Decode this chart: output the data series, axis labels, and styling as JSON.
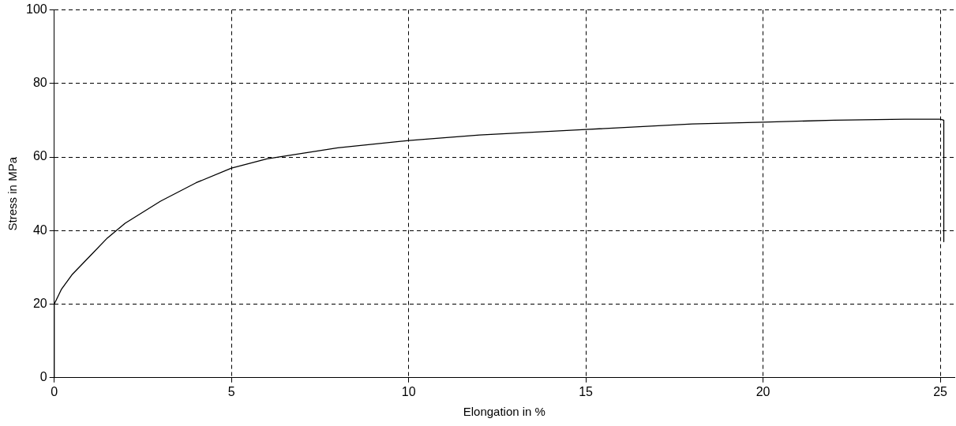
{
  "chart_data": {
    "type": "line",
    "xlabel": "Elongation in %",
    "ylabel": "Stress in MPa",
    "xlim": [
      0,
      25.4
    ],
    "ylim": [
      0,
      100
    ],
    "xticks": [
      0,
      5,
      10,
      15,
      20,
      25
    ],
    "yticks": [
      0,
      20,
      40,
      60,
      80,
      100
    ],
    "grid": true,
    "legend": false,
    "marker": "none",
    "line_style": "solid",
    "series": [
      {
        "color": "#000000",
        "x": [
          0,
          0,
          0.2,
          0.5,
          1,
          1.5,
          2,
          3,
          4,
          5,
          6,
          7,
          8,
          10,
          12,
          15,
          18,
          20,
          22,
          24,
          25,
          25.1,
          25.1
        ],
        "values": [
          0,
          20,
          24,
          28,
          33,
          38,
          42,
          48,
          53,
          57,
          59.5,
          61,
          62.5,
          64.5,
          66,
          67.5,
          69,
          69.5,
          70,
          70.3,
          70.3,
          70,
          37
        ]
      }
    ]
  }
}
